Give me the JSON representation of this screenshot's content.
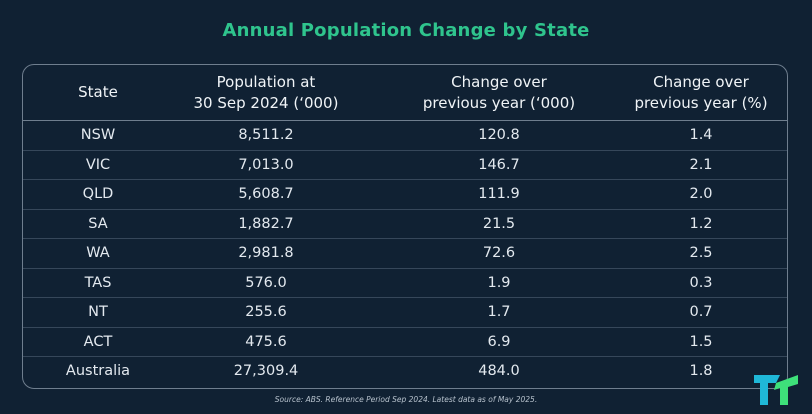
{
  "title": "Annual Population Change by State",
  "headers": {
    "state": "State",
    "population_line1": "Population at",
    "population_line2": "30 Sep 2024 (‘000)",
    "change_line1": "Change over",
    "change_line2": "previous year (‘000)",
    "pct_line1": "Change over",
    "pct_line2": "previous year (%)"
  },
  "chart_data": {
    "type": "table",
    "title": "Annual Population Change by State",
    "columns": [
      "State",
      "Population at 30 Sep 2024 (‘000)",
      "Change over previous year (‘000)",
      "Change over previous year (%)"
    ],
    "rows": [
      [
        "NSW",
        "8,511.2",
        "120.8",
        "1.4"
      ],
      [
        "VIC",
        "7,013.0",
        "146.7",
        "2.1"
      ],
      [
        "QLD",
        "5,608.7",
        "111.9",
        "2.0"
      ],
      [
        "SA",
        "1,882.7",
        "21.5",
        "1.2"
      ],
      [
        "WA",
        "2,981.8",
        "72.6",
        "2.5"
      ],
      [
        "TAS",
        "576.0",
        "1.9",
        "0.3"
      ],
      [
        "NT",
        "255.6",
        "1.7",
        "0.7"
      ],
      [
        "ACT",
        "475.6",
        "6.9",
        "1.5"
      ],
      [
        "Australia",
        "27,309.4",
        "484.0",
        "1.8"
      ]
    ]
  },
  "source": "Source: ABS. Reference Period Sep 2024. Latest data as of May 2025.",
  "colors": {
    "background": "#102133",
    "title": "#2fc48d",
    "logo_teal": "#1fb8d8",
    "logo_green": "#3ee07a"
  },
  "logo": {
    "icon": "brand-logo-icon"
  }
}
